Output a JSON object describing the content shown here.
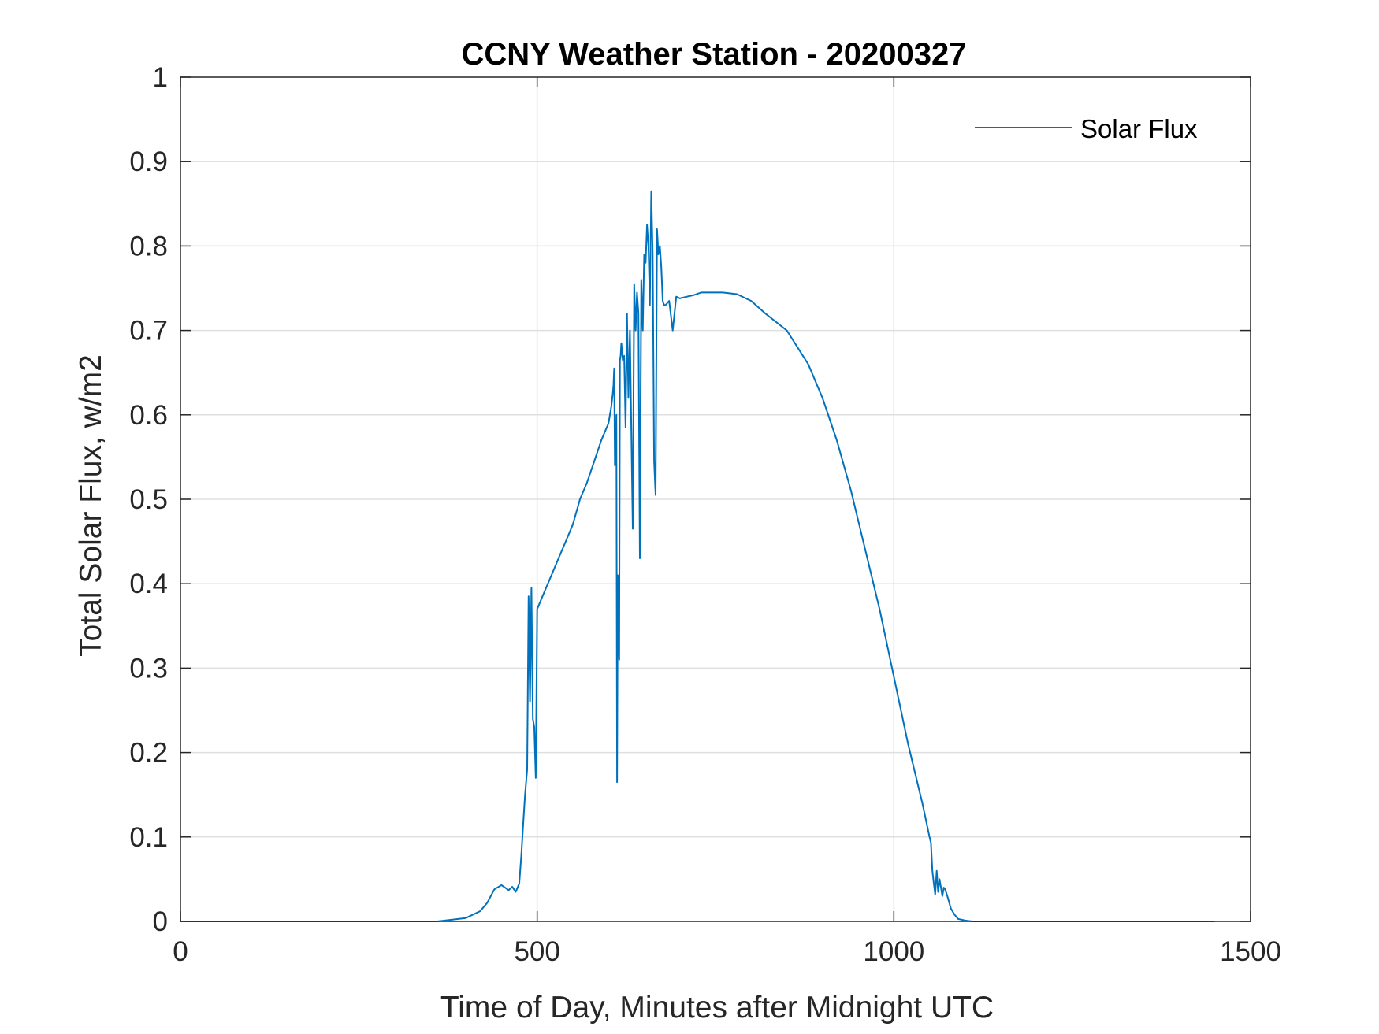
{
  "chart_data": {
    "type": "line",
    "title": "CCNY Weather Station - 20200327",
    "xlabel": "Time of Day, Minutes after Midnight UTC",
    "ylabel": "Total Solar Flux, w/m2",
    "xlim": [
      0,
      1500
    ],
    "ylim": [
      0,
      1
    ],
    "xticks": [
      0,
      500,
      1000,
      1500
    ],
    "xtick_labels": [
      "0",
      "500",
      "1000",
      "1500"
    ],
    "yticks": [
      0,
      0.1,
      0.2,
      0.3,
      0.4,
      0.5,
      0.6,
      0.7,
      0.8,
      0.9,
      1
    ],
    "ytick_labels": [
      "0",
      "0.1",
      "0.2",
      "0.3",
      "0.4",
      "0.5",
      "0.6",
      "0.7",
      "0.8",
      "0.9",
      "1"
    ],
    "grid": true,
    "legend_position": "top-right",
    "colors": {
      "series": "#0072BD",
      "axis": "#262626",
      "grid": "#dfdfdf"
    },
    "series": [
      {
        "name": "Solar Flux",
        "x": [
          0,
          100,
          200,
          300,
          360,
          380,
          400,
          420,
          430,
          440,
          450,
          455,
          460,
          465,
          470,
          475,
          478,
          480,
          483,
          486,
          488,
          490,
          492,
          494,
          496,
          498,
          500,
          510,
          520,
          530,
          540,
          550,
          560,
          570,
          580,
          590,
          600,
          602,
          604,
          606,
          607,
          608,
          609,
          610,
          611,
          612,
          613,
          614,
          615,
          616,
          617,
          618,
          620,
          622,
          624,
          626,
          628,
          630,
          632,
          634,
          636,
          638,
          640,
          642,
          644,
          646,
          648,
          650,
          652,
          654,
          656,
          658,
          660,
          662,
          664,
          666,
          668,
          670,
          672,
          674,
          676,
          678,
          680,
          685,
          690,
          695,
          700,
          710,
          720,
          730,
          740,
          760,
          780,
          800,
          820,
          850,
          880,
          900,
          920,
          940,
          960,
          980,
          1000,
          1020,
          1040,
          1050,
          1052,
          1054,
          1056,
          1058,
          1060,
          1062,
          1064,
          1066,
          1068,
          1070,
          1072,
          1075,
          1080,
          1085,
          1090,
          1100,
          1110,
          1200,
          1300,
          1400,
          1450
        ],
        "y": [
          0,
          0,
          0,
          0,
          0,
          0.002,
          0.004,
          0.012,
          0.022,
          0.038,
          0.043,
          0.04,
          0.037,
          0.041,
          0.035,
          0.045,
          0.08,
          0.11,
          0.15,
          0.18,
          0.385,
          0.26,
          0.395,
          0.24,
          0.23,
          0.17,
          0.37,
          0.39,
          0.41,
          0.43,
          0.45,
          0.47,
          0.5,
          0.52,
          0.545,
          0.57,
          0.59,
          0.6,
          0.61,
          0.625,
          0.635,
          0.655,
          0.54,
          0.56,
          0.6,
          0.165,
          0.41,
          0.35,
          0.31,
          0.665,
          0.67,
          0.685,
          0.665,
          0.67,
          0.585,
          0.72,
          0.62,
          0.7,
          0.58,
          0.465,
          0.755,
          0.7,
          0.745,
          0.72,
          0.43,
          0.76,
          0.7,
          0.79,
          0.78,
          0.825,
          0.8,
          0.73,
          0.865,
          0.79,
          0.545,
          0.505,
          0.82,
          0.79,
          0.8,
          0.775,
          0.735,
          0.73,
          0.73,
          0.735,
          0.7,
          0.74,
          0.738,
          0.74,
          0.742,
          0.745,
          0.745,
          0.745,
          0.743,
          0.735,
          0.72,
          0.7,
          0.66,
          0.62,
          0.57,
          0.51,
          0.44,
          0.37,
          0.29,
          0.21,
          0.14,
          0.1,
          0.093,
          0.06,
          0.045,
          0.032,
          0.06,
          0.035,
          0.05,
          0.04,
          0.03,
          0.04,
          0.038,
          0.03,
          0.015,
          0.008,
          0.003,
          0.001,
          0,
          0,
          0,
          0,
          0
        ]
      }
    ]
  }
}
